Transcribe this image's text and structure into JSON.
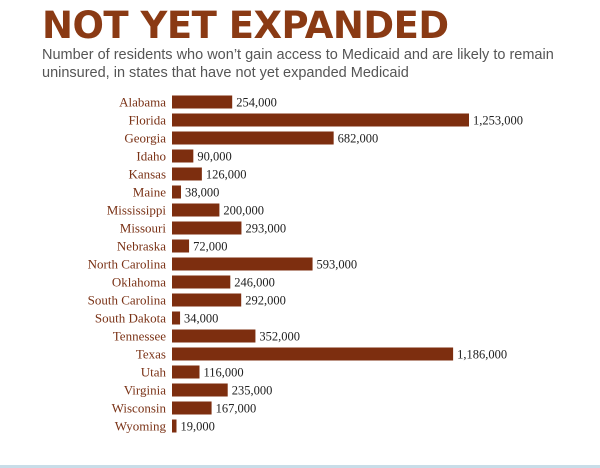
{
  "colors": {
    "title": "#8a3a14",
    "bar": "#7d2e0f",
    "label": "#7a3216"
  },
  "chart_data": {
    "type": "bar",
    "orientation": "horizontal",
    "title": "NOT YET EXPANDED",
    "subtitle": "Number of residents who won’t gain access to Medicaid and are likely to remain uninsured, in states that have not yet expanded Medicaid",
    "categories": [
      "Alabama",
      "Florida",
      "Georgia",
      "Idaho",
      "Kansas",
      "Maine",
      "Mississippi",
      "Missouri",
      "Nebraska",
      "North Carolina",
      "Oklahoma",
      "South Carolina",
      "South Dakota",
      "Tennessee",
      "Texas",
      "Utah",
      "Virginia",
      "Wisconsin",
      "Wyoming"
    ],
    "values": [
      254000,
      1253000,
      682000,
      90000,
      126000,
      38000,
      200000,
      293000,
      72000,
      593000,
      246000,
      292000,
      34000,
      352000,
      1186000,
      116000,
      235000,
      167000,
      19000
    ],
    "value_labels": [
      "254,000",
      "1,253,000",
      "682,000",
      "90,000",
      "126,000",
      "38,000",
      "200,000",
      "293,000",
      "72,000",
      "593,000",
      "246,000",
      "292,000",
      "34,000",
      "352,000",
      "1,186,000",
      "116,000",
      "235,000",
      "167,000",
      "19,000"
    ],
    "xlim": [
      0,
      1253000
    ],
    "grid": false,
    "legend": "none"
  }
}
